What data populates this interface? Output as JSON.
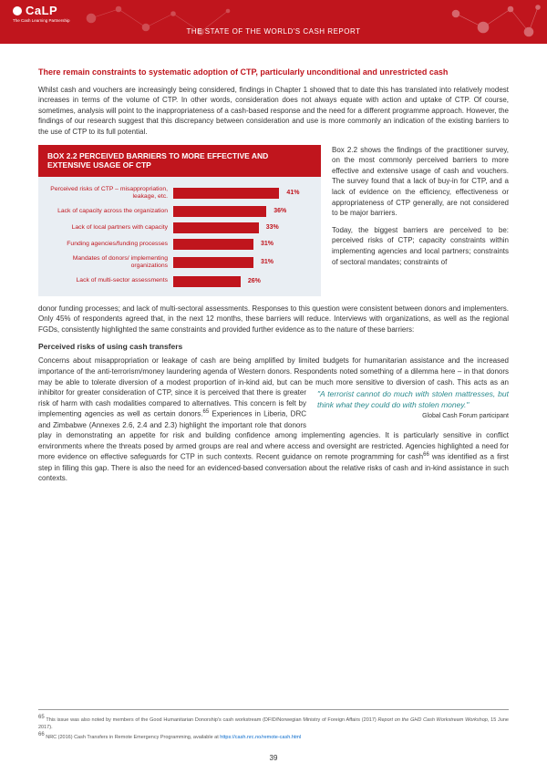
{
  "header": {
    "logo_text": "CaLP",
    "logo_sub": "The Cash Learning Partnership",
    "title": "THE STATE OF THE WORLD'S CASH REPORT"
  },
  "section_heading": "There remain constraints to systematic adoption of CTP, particularly unconditional and unrestricted cash",
  "para1": "Whilst cash and vouchers are increasingly being considered, findings in Chapter 1 showed that to date this has translated into relatively modest increases in terms of the volume of CTP. In other words, consideration does not always equate with action and uptake of CTP. Of course, sometimes, analysis will point to the inappropriateness of a cash-based response and the need for a different programme approach. However, the findings of our research suggest that this discrepancy between consideration and use is more commonly an indication of the existing barriers to the use of CTP to its full potential.",
  "box": {
    "title": "BOX 2.2  PERCEIVED BARRIERS TO MORE EFFECTIVE AND EXTENSIVE USAGE OF CTP",
    "type": "bar",
    "bar_color": "#c0151d",
    "bg_color": "#e9eef3",
    "label_color": "#c0151d",
    "value_color": "#c0151d",
    "max_value": 50,
    "bars": [
      {
        "label": "Perceived risks of CTP – misappropriation, leakage, etc.",
        "value": 41,
        "display": "41%"
      },
      {
        "label": "Lack of capacity across the organization",
        "value": 36,
        "display": "36%"
      },
      {
        "label": "Lack of local partners with capacity",
        "value": 33,
        "display": "33%"
      },
      {
        "label": "Funding agencies/funding processes",
        "value": 31,
        "display": "31%"
      },
      {
        "label": "Mandates of donors/ implementing organizations",
        "value": 31,
        "display": "31%"
      },
      {
        "label": "Lack of multi-sector assessments",
        "value": 26,
        "display": "26%"
      }
    ]
  },
  "side_p1": "Box 2.2 shows the findings of the practitioner survey, on the most commonly perceived barriers to more effective and extensive usage of cash and vouchers. The survey found that a lack of buy-in for CTP, and a lack of evidence on the efficiency, effectiveness or appropriateness of CTP generally, are not considered to be major barriers.",
  "side_p2": "Today, the biggest barriers are perceived to be: perceived risks of CTP; capacity constraints within implementing agencies and local partners; constraints of sectoral mandates; constraints of",
  "para2": "donor funding processes; and lack of multi-sectoral assessments. Responses to this question were consistent between donors and implementers. Only 45% of respondents agreed that, in the next 12 months, these barriers will reduce. Interviews with organizations, as well as the regional FGDs, consistently highlighted the same constraints and provided further evidence as to the nature of these barriers:",
  "subheading": "Perceived risks of using cash transfers",
  "para3a": "Concerns about misappropriation or leakage of cash are being amplified by limited budgets for humanitarian assistance and the increased importance of the anti-terrorism/money laundering agenda of Western donors. Respondents noted something of a dilemma here – in that donors may be able to tolerate diversion of a modest proportion of in-kind aid, but can be much more sensitive to",
  "para3b": "diversion of cash. This acts as an inhibitor for greater consideration of CTP, since it is perceived that there is greater risk of harm with cash modalities compared to alternatives. This concern is felt by implementing agencies as well as certain donors.",
  "fn65": "65",
  "para3c": " Experiences in Liberia, DRC and Zimbabwe (Annexes",
  "quote": {
    "text": "\"A terrorist cannot do much with stolen mattresses, but think what they could do with stolen money.\"",
    "attr": "Global Cash Forum participant"
  },
  "para4": "2.6, 2.4 and 2.3) highlight the important role that donors play in demonstrating an appetite for risk and building confidence among implementing agencies. It is particularly sensitive in conflict environments where the threats posed by armed groups are real and where access and oversight are restricted. Agencies highlighted a need for more evidence on effective safeguards for CTP in such contexts. Recent guidance on remote programming for cash",
  "fn66": "66",
  "para4b": " was identified as a first step in filling this gap. There is also the need for an evidenced-based conversation about the relative risks of cash and in-kind assistance in such contexts.",
  "footnotes": {
    "fn1_num": "65",
    "fn1_text": " This issue was also noted by members of the Good Humanitarian Donorship's cash workstream (DFID/Norwegian Ministry of Foreign Affairs (2017) ",
    "fn1_italic": "Report on the GHD Cash Workstream Workshop",
    "fn1_text2": ", 15 June 2017).",
    "fn2_num": "66",
    "fn2_text": " NRC (2016) Cash Transfers in Remote Emergency Programming, available at ",
    "fn2_link": "https://cash.nrc.no/remote-cash.html"
  },
  "page_number": "39"
}
